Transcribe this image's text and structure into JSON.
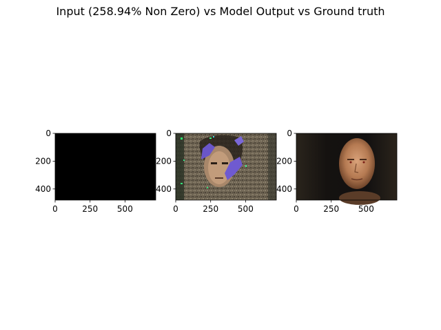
{
  "figure": {
    "title": "Input (258.94% Non Zero) vs Model Output vs Ground truth"
  },
  "panels": [
    {
      "id": "input",
      "image": "black-image",
      "x_ticks": [
        "0",
        "250",
        "500"
      ],
      "y_ticks": [
        "0",
        "200",
        "400"
      ]
    },
    {
      "id": "model-output",
      "image": "noisy-face-reconstruction",
      "x_ticks": [
        "0",
        "250",
        "500"
      ],
      "y_ticks": [
        "0",
        "200",
        "400"
      ]
    },
    {
      "id": "ground-truth",
      "image": "mannequin-head-photo",
      "x_ticks": [
        "0",
        "250",
        "500"
      ],
      "y_ticks": [
        "0",
        "200",
        "400"
      ]
    }
  ],
  "axis": {
    "x_max": 720,
    "y_max": 480,
    "x_tick_values": [
      0,
      250,
      500
    ],
    "y_tick_values": [
      0,
      200,
      400
    ]
  },
  "colors": {
    "background": "#ffffff",
    "axis": "#000000"
  }
}
